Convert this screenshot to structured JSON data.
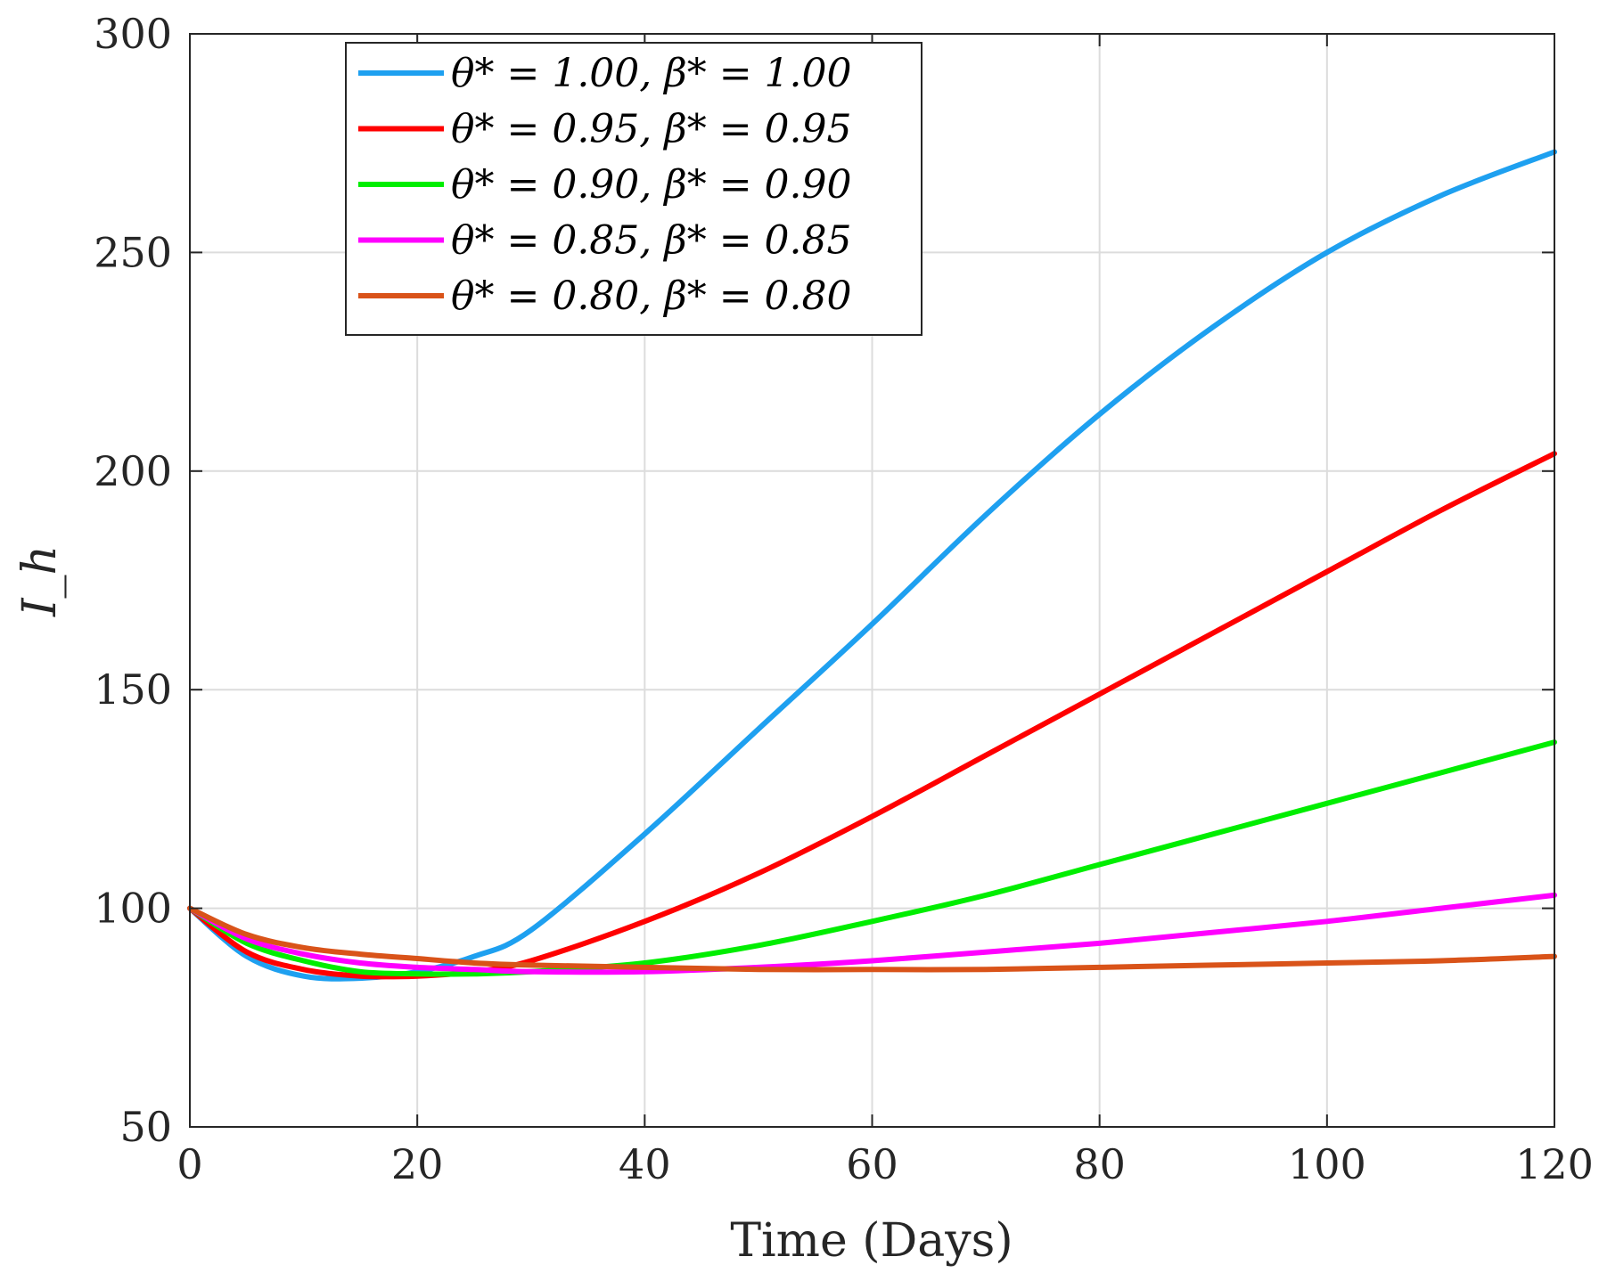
{
  "chart_data": {
    "type": "line",
    "xlabel": "Time (Days)",
    "ylabel": "I_h",
    "xlim": [
      0,
      120
    ],
    "ylim": [
      50,
      300
    ],
    "xticks": [
      "0",
      "20",
      "40",
      "60",
      "80",
      "100",
      "120"
    ],
    "yticks": [
      "50",
      "100",
      "150",
      "200",
      "250",
      "300"
    ],
    "grid": true,
    "legend_position": "top-left",
    "x": [
      0,
      5,
      10,
      15,
      20,
      25,
      30,
      40,
      50,
      60,
      70,
      80,
      90,
      100,
      110,
      120
    ],
    "series": [
      {
        "name": "θ* = 1.00, β* = 1.00",
        "color": "#1ea0f0",
        "values": [
          100,
          89,
          84.5,
          84,
          85.5,
          89,
          95,
          117,
          141,
          165,
          190,
          213,
          233,
          250,
          263,
          273
        ]
      },
      {
        "name": "θ* = 0.95, β* = 0.95",
        "color": "#ff0000",
        "values": [
          100,
          90,
          86,
          84.5,
          84.5,
          85.5,
          88,
          97,
          108,
          121,
          135,
          149,
          163,
          177,
          191,
          204
        ]
      },
      {
        "name": "θ* = 0.90, β* = 0.90",
        "color": "#00ee00",
        "values": [
          100,
          92,
          88,
          85.5,
          85,
          85,
          85.5,
          87.5,
          91.5,
          97,
          103,
          110,
          117,
          124,
          131,
          138
        ]
      },
      {
        "name": "θ* = 0.85, β* = 0.85",
        "color": "#ff00ff",
        "values": [
          100,
          93,
          89.5,
          87.5,
          86.5,
          86,
          85.5,
          85.5,
          86.5,
          88,
          90,
          92,
          94.5,
          97,
          100,
          103
        ]
      },
      {
        "name": "θ* = 0.80, β* = 0.80",
        "color": "#d95319",
        "values": [
          100,
          94,
          91,
          89.5,
          88.5,
          87.5,
          87,
          86.5,
          86,
          86,
          86,
          86.5,
          87,
          87.5,
          88,
          89
        ]
      }
    ]
  }
}
